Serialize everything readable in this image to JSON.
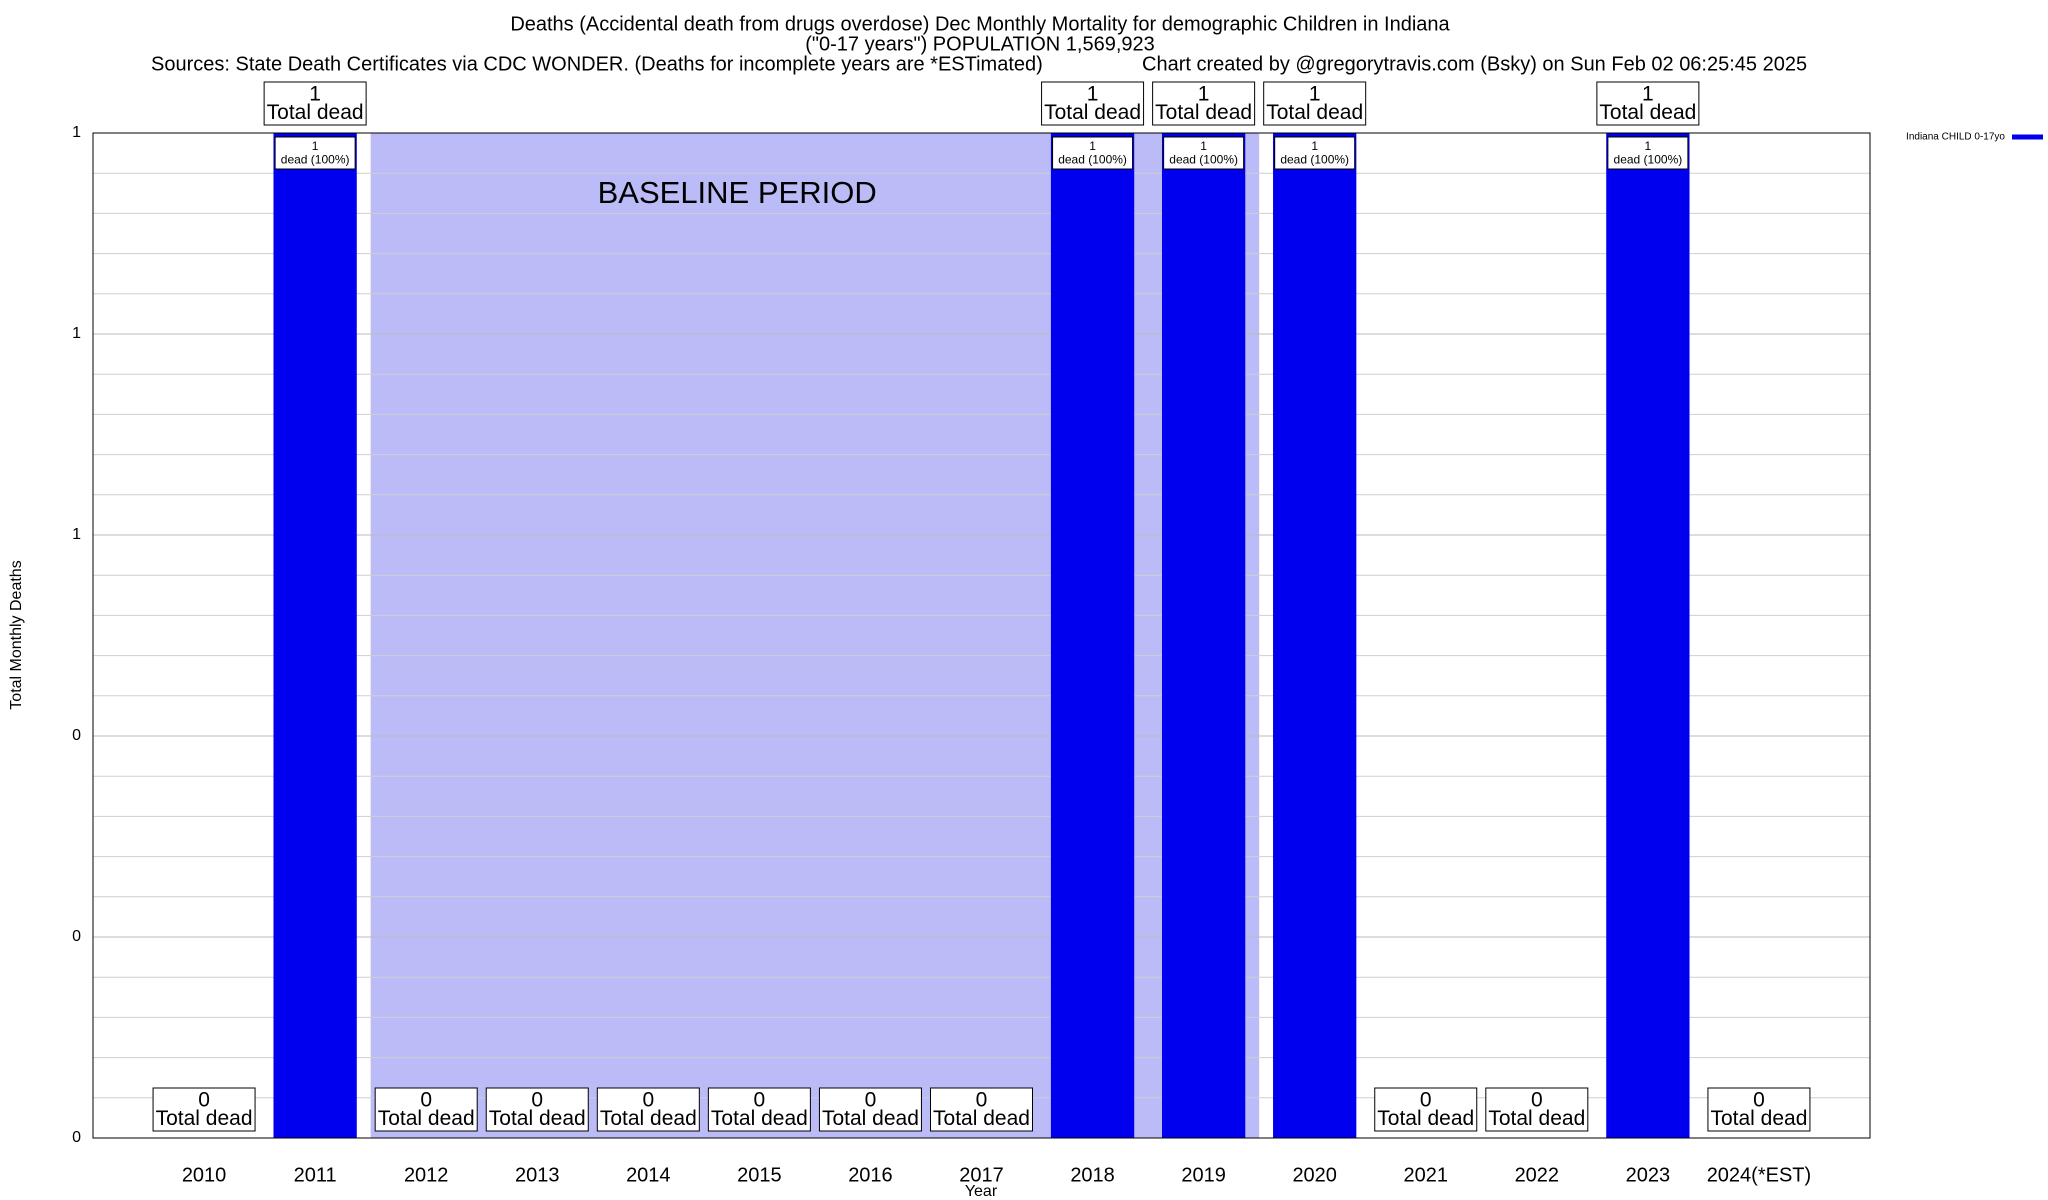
{
  "chart_data": {
    "type": "bar",
    "title": "Deaths (Accidental death from drugs overdose) Dec Monthly Mortality for demographic Children in Indiana",
    "subtitle": "(\"0-17 years\") POPULATION 1,569,923",
    "sources": "Sources: State Death Certificates via CDC WONDER. (Deaths for incomplete years are *ESTimated)",
    "credit": "Chart created by @gregorytravis.com (Bsky) on Sun Feb 02 06:25:45 2025",
    "x_label": "Year",
    "y_label": "Total Monthly Deaths",
    "categories": [
      "2010",
      "2011",
      "2012",
      "2013",
      "2014",
      "2015",
      "2016",
      "2017",
      "2018",
      "2019",
      "2020",
      "2021",
      "2022",
      "2023",
      "2024(*EST)"
    ],
    "series": [
      {
        "name": "Indiana CHILD 0-17yo",
        "color": "#0000ee",
        "values": [
          0,
          1,
          0,
          0,
          0,
          0,
          0,
          0,
          1,
          1,
          1,
          0,
          0,
          1,
          0
        ]
      }
    ],
    "total_label": "Total dead",
    "bar_label": "dead (100%)",
    "baseline": {
      "label": "BASELINE PERIOD",
      "from": "2012",
      "to": "2019",
      "color": "#bbbbf8"
    },
    "ylim": [
      0,
      1
    ],
    "yticks": [
      0,
      {
        "value": 0.2,
        "label": "0"
      },
      {
        "value": 0.4,
        "label": "0"
      },
      {
        "value": 0.6,
        "label": "1"
      },
      {
        "value": 0.8,
        "label": "1"
      },
      1
    ],
    "yminorticks": [
      0.04,
      0.08,
      0.12,
      0.16,
      0.24,
      0.28,
      0.32,
      0.36,
      0.44,
      0.48,
      0.52,
      0.56,
      0.64,
      0.68,
      0.72,
      0.76,
      0.84,
      0.88,
      0.92,
      0.96
    ],
    "grid": true,
    "legend": "top-right"
  }
}
